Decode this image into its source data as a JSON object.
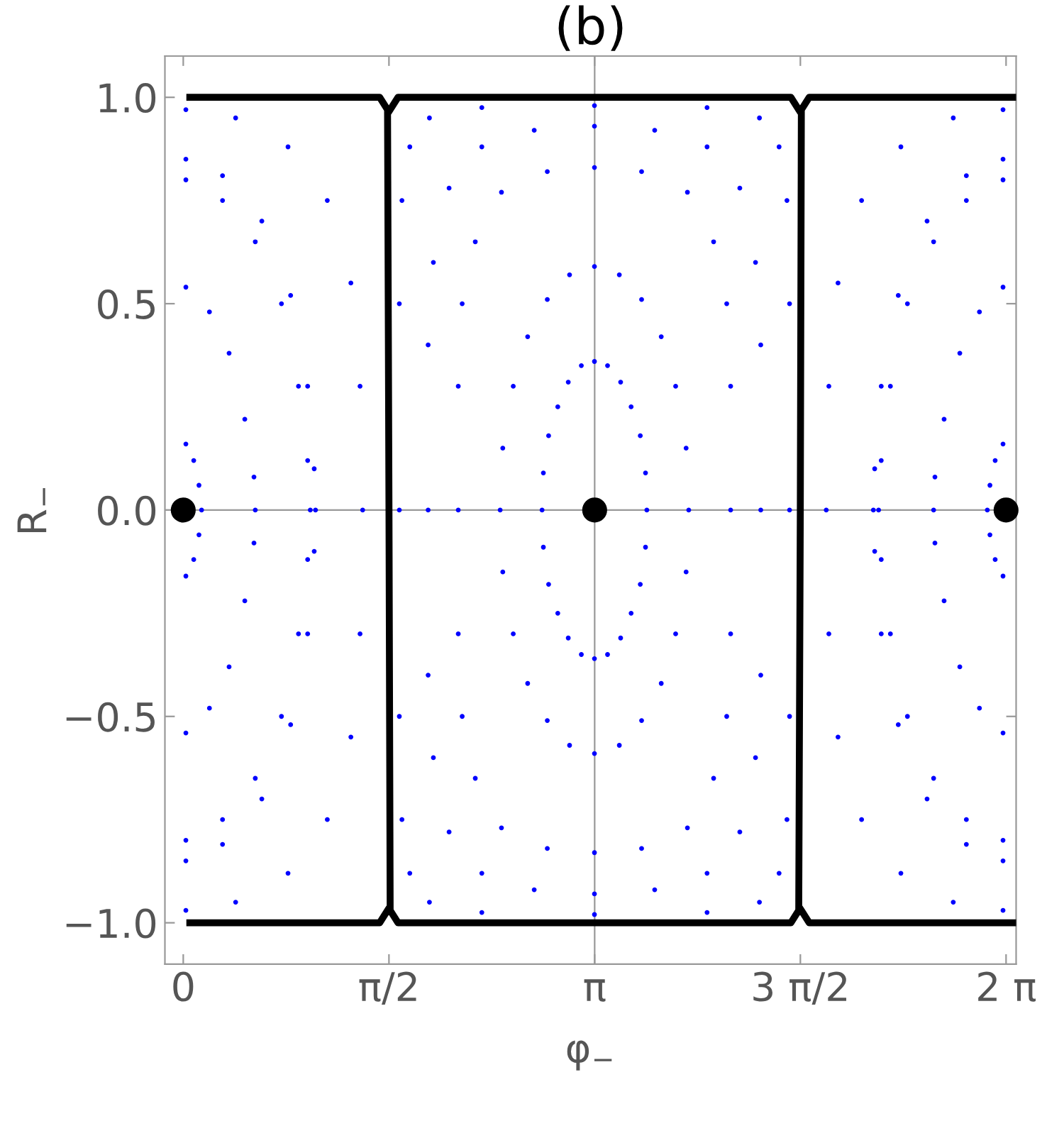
{
  "chart_data": {
    "type": "scatter",
    "title": "(b)",
    "xlabel": "φ$_{−}$",
    "ylabel": "R$_{−}$",
    "xlim": [
      -0.14,
      6.36
    ],
    "ylim": [
      -1.1,
      1.1
    ],
    "xticks": [
      {
        "value": 0,
        "label": "0"
      },
      {
        "value": 1.5708,
        "label": "π/2"
      },
      {
        "value": 3.1416,
        "label": "π"
      },
      {
        "value": 4.7124,
        "label": "3 π/2"
      },
      {
        "value": 6.2832,
        "label": "2 π"
      }
    ],
    "yticks": [
      {
        "value": -1.0,
        "label": "−1.0"
      },
      {
        "value": -0.5,
        "label": "−0.5"
      },
      {
        "value": 0.0,
        "label": "0.0"
      },
      {
        "value": 0.5,
        "label": "0.5"
      },
      {
        "value": 1.0,
        "label": "1.0"
      }
    ],
    "grid": false,
    "legend": false,
    "marker": "circle",
    "ref_lines": [
      {
        "axis": "x",
        "value": 3.1416,
        "color": "#999999"
      },
      {
        "axis": "y",
        "value": 0,
        "color": "#999999"
      }
    ],
    "series": [
      {
        "type": "line",
        "color": "#000000",
        "marker": "none",
        "x": [
          0.05,
          1.5,
          1.56,
          1.571,
          1.58,
          1.64,
          4.64,
          4.7,
          4.712,
          4.72,
          4.78,
          6.36,
          null,
          0.05,
          1.5,
          1.56,
          null,
          1.58,
          1.64,
          4.64,
          4.7,
          null,
          4.72,
          4.78,
          6.36
        ],
        "values": [
          1,
          1,
          0.97,
          0,
          -0.97,
          -1,
          -1,
          -0.97,
          0,
          0.97,
          1,
          1,
          null,
          -1,
          -1,
          -0.97,
          null,
          0.97,
          1,
          1,
          0.97,
          null,
          -0.97,
          -1,
          -1
        ]
      },
      {
        "color": "#0000ff",
        "x": [
          3.54,
          3.53,
          3.49,
          3.42,
          3.34,
          3.24,
          3.14,
          3.04,
          2.94,
          2.86,
          2.79,
          2.75,
          2.74,
          2.75,
          2.79,
          2.86,
          2.94,
          3.04,
          3.14,
          3.24,
          3.34,
          3.42,
          3.49,
          3.53
        ],
        "values": [
          0,
          0.09,
          0.18,
          0.25,
          0.31,
          0.35,
          0.36,
          0.35,
          0.31,
          0.25,
          0.18,
          0.09,
          0,
          -0.09,
          -0.18,
          -0.25,
          -0.31,
          -0.35,
          -0.36,
          -0.35,
          -0.31,
          -0.25,
          -0.18,
          -0.09
        ]
      },
      {
        "color": "#0000ff",
        "x": [
          3.86,
          3.84,
          3.76,
          3.65,
          3.5,
          3.33,
          3.14,
          2.95,
          2.78,
          2.63,
          2.52,
          2.44,
          2.42,
          2.44,
          2.52,
          2.63,
          2.78,
          2.95,
          3.14,
          3.33,
          3.5,
          3.65,
          3.76,
          3.84
        ],
        "values": [
          0,
          0.15,
          0.3,
          0.42,
          0.51,
          0.57,
          0.59,
          0.57,
          0.51,
          0.42,
          0.3,
          0.15,
          0,
          -0.15,
          -0.3,
          -0.42,
          -0.51,
          -0.57,
          -0.59,
          -0.57,
          -0.51,
          -0.42,
          -0.3,
          -0.15
        ]
      },
      {
        "color": "#0000ff",
        "x": [
          4.18,
          4.18,
          4.15,
          4.05,
          3.85,
          3.5,
          3.14,
          2.78,
          2.43,
          2.23,
          2.13,
          2.1,
          2.1,
          2.1,
          2.13,
          2.23,
          2.43,
          2.78,
          3.14,
          3.5,
          3.85,
          4.05,
          4.15,
          4.18
        ],
        "values": [
          0,
          0.3,
          0.5,
          0.65,
          0.77,
          0.82,
          0.83,
          0.82,
          0.77,
          0.65,
          0.5,
          0.3,
          0,
          -0.3,
          -0.5,
          -0.65,
          -0.77,
          -0.82,
          -0.83,
          -0.82,
          -0.77,
          -0.65,
          -0.5,
          -0.3
        ]
      },
      {
        "color": "#0000ff",
        "x": [
          4.41,
          4.41,
          4.37,
          4.25,
          4.0,
          3.6,
          3.14,
          2.68,
          2.28,
          2.03,
          1.91,
          1.87,
          1.87,
          1.87,
          1.91,
          2.03,
          2.28,
          2.68,
          3.14,
          3.6,
          4.0,
          4.25,
          4.37,
          4.41
        ],
        "values": [
          0,
          0.4,
          0.6,
          0.78,
          0.88,
          0.92,
          0.93,
          0.92,
          0.88,
          0.78,
          0.6,
          0.4,
          0,
          -0.4,
          -0.6,
          -0.78,
          -0.88,
          -0.92,
          -0.93,
          -0.92,
          -0.88,
          -0.78,
          -0.6,
          -0.4
        ]
      },
      {
        "color": "#0000ff",
        "x": [
          4.63,
          4.63,
          4.61,
          4.55,
          4.4,
          4.0,
          3.14,
          2.28,
          1.88,
          1.73,
          1.67,
          1.65,
          1.65,
          1.65,
          1.67,
          1.73,
          1.88,
          2.28,
          3.14,
          4.0,
          4.4,
          4.55,
          4.61,
          4.63
        ],
        "values": [
          0,
          0.5,
          0.75,
          0.88,
          0.95,
          0.975,
          0.98,
          0.975,
          0.95,
          0.88,
          0.75,
          0.5,
          0,
          -0.5,
          -0.75,
          -0.88,
          -0.95,
          -0.975,
          -0.98,
          -0.975,
          -0.95,
          -0.88,
          -0.75,
          -0.5
        ]
      },
      {
        "color": "#0000ff",
        "x": [
          0.02,
          0.08,
          0.12,
          0.14,
          0.12,
          0.08,
          0.02,
          6.26,
          6.2,
          6.16,
          6.14,
          6.16,
          6.2,
          6.26
        ],
        "values": [
          0.16,
          0.12,
          0.06,
          0,
          -0.06,
          -0.12,
          -0.16,
          0.16,
          0.12,
          0.06,
          0,
          -0.06,
          -0.12,
          -0.16
        ]
      },
      {
        "color": "#0000ff",
        "x": [
          0.02,
          0.2,
          0.35,
          0.47,
          0.54,
          0.55,
          0.54,
          0.47,
          0.35,
          0.2,
          0.02,
          6.26,
          6.08,
          5.93,
          5.81,
          5.74,
          5.73,
          5.74,
          5.81,
          5.93,
          6.08,
          6.26
        ],
        "values": [
          0.54,
          0.48,
          0.38,
          0.22,
          0.08,
          0,
          -0.08,
          -0.22,
          -0.38,
          -0.48,
          -0.54,
          0.54,
          0.48,
          0.38,
          0.22,
          0.08,
          0,
          -0.08,
          -0.22,
          -0.38,
          -0.48,
          -0.54
        ]
      },
      {
        "color": "#0000ff",
        "x": [
          0.02,
          0.3,
          0.55,
          0.75,
          0.88,
          0.95,
          0.97,
          0.95,
          0.88,
          0.75,
          0.55,
          0.3,
          0.02,
          6.26,
          5.98,
          5.73,
          5.53,
          5.4,
          5.33,
          5.31,
          5.33,
          5.4,
          5.53,
          5.73,
          5.98,
          6.26
        ],
        "values": [
          0.8,
          0.75,
          0.65,
          0.5,
          0.3,
          0.12,
          0,
          -0.12,
          -0.3,
          -0.5,
          -0.65,
          -0.75,
          -0.8,
          0.8,
          0.75,
          0.65,
          0.5,
          0.3,
          0.12,
          0,
          -0.12,
          -0.3,
          -0.5,
          -0.65,
          -0.75,
          -0.8
        ]
      },
      {
        "color": "#0000ff",
        "x": [
          0.02,
          0.3,
          0.6,
          0.82,
          0.95,
          1.0,
          1.01,
          1.0,
          0.95,
          0.82,
          0.6,
          0.3,
          0.02,
          6.26,
          5.98,
          5.68,
          5.46,
          5.33,
          5.28,
          5.27,
          5.28,
          5.33,
          5.46,
          5.68,
          5.98,
          6.26
        ],
        "values": [
          0.85,
          0.81,
          0.7,
          0.52,
          0.3,
          0.1,
          0,
          -0.1,
          -0.3,
          -0.52,
          -0.7,
          -0.81,
          -0.85,
          0.85,
          0.81,
          0.7,
          0.52,
          0.3,
          0.1,
          0,
          -0.1,
          -0.3,
          -0.52,
          -0.7,
          -0.81,
          -0.85
        ]
      },
      {
        "color": "#0000ff",
        "x": [
          0.02,
          0.4,
          0.8,
          1.1,
          1.28,
          1.35,
          1.37,
          1.35,
          1.28,
          1.1,
          0.8,
          0.4,
          0.02,
          6.26,
          5.88,
          5.48,
          5.18,
          5.0,
          4.93,
          4.91,
          4.93,
          5.0,
          5.18,
          5.48,
          5.88,
          6.26
        ],
        "values": [
          0.97,
          0.95,
          0.88,
          0.75,
          0.55,
          0.3,
          0,
          -0.3,
          -0.55,
          -0.75,
          -0.88,
          -0.95,
          -0.97,
          0.97,
          0.95,
          0.88,
          0.75,
          0.55,
          0.3,
          0,
          -0.3,
          -0.55,
          -0.75,
          -0.88,
          -0.95,
          -0.97
        ]
      },
      {
        "type": "bubble",
        "color": "#000000",
        "x": [
          0,
          3.1416,
          6.2832
        ],
        "values": [
          0,
          0,
          0
        ],
        "sizes": [
          1,
          1,
          1
        ]
      }
    ]
  }
}
